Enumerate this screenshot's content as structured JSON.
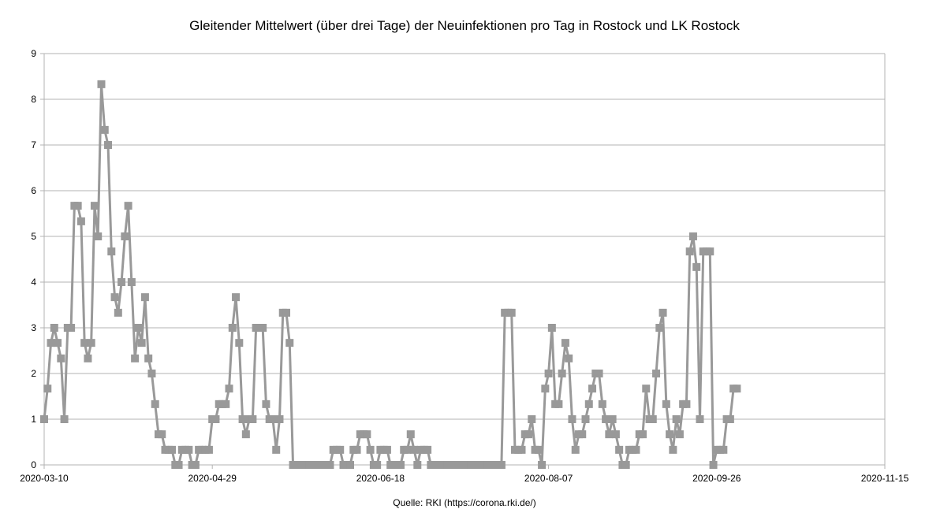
{
  "chart_data": {
    "type": "line",
    "title": "Gleitender Mittelwert (über drei Tage) der Neuinfektionen pro Tag in Rostock und LK Rostock",
    "source": "Quelle: RKI (https://corona.rki.de/)",
    "xlabel": "",
    "ylabel": "",
    "ylim": [
      0,
      9
    ],
    "y_ticks": [
      "0",
      "1",
      "2",
      "3",
      "4",
      "5",
      "6",
      "7",
      "8",
      "9"
    ],
    "x_range": [
      "2020-03-10",
      "2020-11-15"
    ],
    "x_ticks": [
      "2020-03-10",
      "2020-04-29",
      "2020-06-18",
      "2020-08-07",
      "2020-09-26",
      "2020-11-15"
    ],
    "grid": true,
    "legend": "none",
    "series_color": "#999999",
    "series": [
      {
        "x_start": "2020-03-10",
        "x_step_days": 1,
        "values": [
          1,
          1.67,
          2.67,
          3,
          2.67,
          2.33,
          1,
          3,
          3,
          5.67,
          5.67,
          5.33,
          2.67,
          2.33,
          2.67,
          5.67,
          5,
          8.33,
          7.33,
          7,
          4.67,
          3.67,
          3.33,
          4,
          5,
          5.67,
          4,
          2.33,
          3,
          2.67,
          3.67,
          2.33,
          2,
          1.33,
          0.67,
          0.67,
          0.33,
          0.33,
          0.33,
          0,
          0,
          0.33,
          0.33,
          0.33,
          0,
          0,
          0.33,
          0.33,
          0.33,
          0.33,
          1,
          1,
          1.33,
          1.33,
          1.33,
          1.67,
          3,
          3.67,
          2.67,
          1,
          0.67,
          1,
          1,
          3,
          3,
          3,
          1.33,
          1,
          1,
          0.33,
          1,
          3.33,
          3.33,
          2.67,
          0,
          0,
          0,
          0,
          0,
          0,
          0,
          0,
          0,
          0,
          0,
          0,
          0.33,
          0.33,
          0.33,
          0,
          0,
          0,
          0.33,
          0.33,
          0.67,
          0.67,
          0.67,
          0.33,
          0,
          0,
          0.33,
          0.33,
          0.33,
          0,
          0,
          0,
          0,
          0.33,
          0.33,
          0.67,
          0.33,
          0,
          0.33,
          0.33,
          0.33,
          0,
          0,
          0,
          0,
          0,
          0,
          0,
          0,
          0,
          0,
          0,
          0,
          0,
          0,
          0,
          0,
          0,
          0,
          0,
          0,
          0,
          0,
          3.33,
          3.33,
          3.33,
          0.33,
          0.33,
          0.33,
          0.67,
          0.67,
          1,
          0.33,
          0.33,
          0,
          1.67,
          2,
          3,
          1.33,
          1.33,
          2,
          2.67,
          2.33,
          1,
          0.33,
          0.67,
          0.67,
          1,
          1.33,
          1.67,
          2,
          2,
          1.33,
          1,
          0.67,
          1,
          0.67,
          0.33,
          0,
          0,
          0.33,
          0.33,
          0.33,
          0.67,
          0.67,
          1.67,
          1,
          1,
          2,
          3,
          3.33,
          1.33,
          0.67,
          0.33,
          1,
          0.67,
          1.33,
          1.33,
          4.67,
          5,
          4.33,
          1,
          4.67,
          4.67,
          4.67,
          0,
          0.33,
          0.33,
          0.33,
          1,
          1,
          1.67,
          1.67
        ]
      }
    ]
  }
}
